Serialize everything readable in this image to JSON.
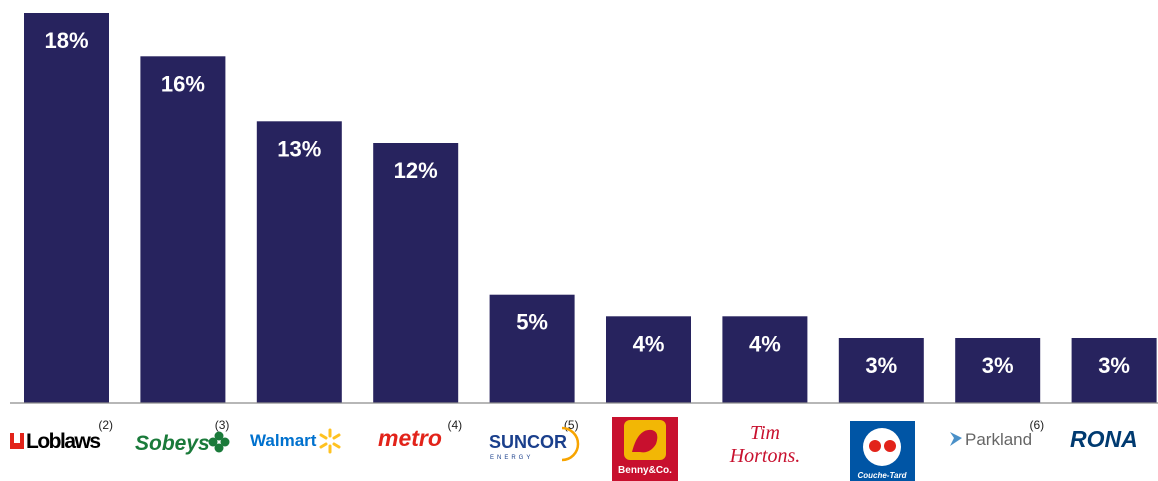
{
  "chart_data": {
    "type": "bar",
    "categories": [
      "Loblaws",
      "Sobeys",
      "Walmart",
      "metro",
      "SUNCOR ENERGY",
      "Benny&Co.",
      "Tim Hortons.",
      "Couche-Tard",
      "Parkland",
      "RONA"
    ],
    "values": [
      18,
      16,
      13,
      12,
      5,
      4,
      4,
      3,
      3,
      3
    ],
    "value_labels": [
      "18%",
      "16%",
      "13%",
      "12%",
      "5%",
      "4%",
      "4%",
      "3%",
      "3%",
      "3%"
    ],
    "footnotes": [
      "(2)",
      "(3)",
      "",
      "(4)",
      "(5)",
      "",
      "",
      "",
      "(6)",
      ""
    ],
    "ylim": [
      0,
      18
    ],
    "grid": false,
    "legend": "none",
    "bar_color": "#27235e",
    "label_color": "#ffffff"
  },
  "logos": {
    "loblaws": {
      "text": "Loblaws",
      "color": "#000000",
      "accent": "#e2231a"
    },
    "sobeys": {
      "text": "Sobeys",
      "color": "#1a7a3a"
    },
    "walmart": {
      "text": "Walmart",
      "color": "#0071ce",
      "accent": "#ffc220"
    },
    "metro": {
      "text": "metro",
      "color": "#e2231a"
    },
    "suncor": {
      "text": "SUNCOR",
      "sub": "ENERGY",
      "color": "#1a3f8c",
      "accent": "#f7a400"
    },
    "benny": {
      "text": "Benny&Co.",
      "color": "#ffffff",
      "bg": "#c8102e"
    },
    "timhortons": {
      "line1": "Tim",
      "line2": "Hortons.",
      "color": "#c8102e"
    },
    "couchetard": {
      "text": "Couche-Tard",
      "color": "#ffffff",
      "bg": "#0055a5",
      "accent": "#e2231a"
    },
    "parkland": {
      "text": "Parkland",
      "color": "#666666"
    },
    "rona": {
      "text": "RONA",
      "color": "#003a70"
    }
  }
}
